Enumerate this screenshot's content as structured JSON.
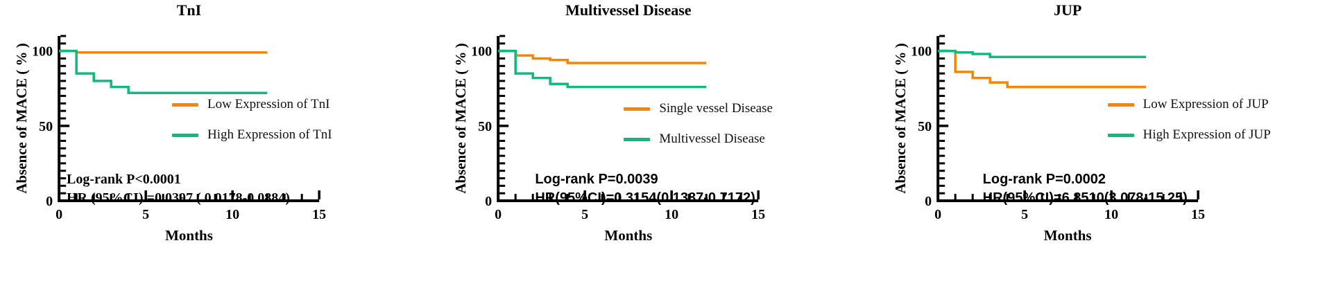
{
  "chart_data": [
    {
      "type": "line",
      "subtype": "kaplan-meier-step",
      "title": "TnI",
      "xlabel": "Months",
      "ylabel": "Absence of MACE ( % )",
      "xlim": [
        0,
        15
      ],
      "ylim": [
        0,
        110
      ],
      "x_major_ticks": [
        0,
        5,
        10,
        15
      ],
      "x_minor_step": 1,
      "y_major_ticks": [
        0,
        50,
        100
      ],
      "y_minor_step": 5,
      "grid": "off",
      "legend_position": "right-middle",
      "series": [
        {
          "name": "Low Expression of TnI",
          "color": "#F78500",
          "points": [
            [
              0,
              100
            ],
            [
              1,
              100
            ],
            [
              1,
              99
            ],
            [
              12,
              99
            ]
          ]
        },
        {
          "name": "High Expression of TnI",
          "color": "#10B981",
          "points": [
            [
              0,
              100
            ],
            [
              1,
              100
            ],
            [
              1,
              85
            ],
            [
              2,
              85
            ],
            [
              2,
              80
            ],
            [
              3,
              80
            ],
            [
              3,
              76
            ],
            [
              4,
              76
            ],
            [
              4,
              72
            ],
            [
              12,
              72
            ]
          ]
        }
      ],
      "annotations": [
        "Log-rank P<0.0001",
        "HR (95%CI) =0.0397 ( 0.0178-0.0884)"
      ]
    },
    {
      "type": "line",
      "subtype": "kaplan-meier-step",
      "title": "Multivessel Disease",
      "xlabel": "Months",
      "ylabel": "Absence of MACE ( % )",
      "xlim": [
        0,
        15
      ],
      "ylim": [
        0,
        110
      ],
      "x_major_ticks": [
        0,
        5,
        10,
        15
      ],
      "x_minor_step": 1,
      "y_major_ticks": [
        0,
        50,
        100
      ],
      "y_minor_step": 5,
      "grid": "off",
      "legend_position": "right-middle",
      "series": [
        {
          "name": "Single vessel Disease",
          "color": "#F78500",
          "points": [
            [
              0,
              100
            ],
            [
              1,
              100
            ],
            [
              1,
              97
            ],
            [
              2,
              97
            ],
            [
              2,
              95
            ],
            [
              3,
              95
            ],
            [
              3,
              94
            ],
            [
              4,
              94
            ],
            [
              4,
              92
            ],
            [
              12,
              92
            ]
          ]
        },
        {
          "name": "Multivessel Disease",
          "color": "#10B981",
          "points": [
            [
              0,
              100
            ],
            [
              1,
              100
            ],
            [
              1,
              85
            ],
            [
              2,
              85
            ],
            [
              2,
              82
            ],
            [
              3,
              82
            ],
            [
              3,
              78
            ],
            [
              4,
              78
            ],
            [
              4,
              76
            ],
            [
              12,
              76
            ]
          ]
        }
      ],
      "annotations": [
        "Log-rank P=0.0039",
        "HR(95%CI)=0.3154(0.1387-0.7172)"
      ]
    },
    {
      "type": "line",
      "subtype": "kaplan-meier-step",
      "title": "JUP",
      "xlabel": "Months",
      "ylabel": "Absence of MACE ( % )",
      "xlim": [
        0,
        15
      ],
      "ylim": [
        0,
        110
      ],
      "x_major_ticks": [
        0,
        5,
        10,
        15
      ],
      "x_minor_step": 1,
      "y_major_ticks": [
        0,
        50,
        100
      ],
      "y_minor_step": 5,
      "grid": "off",
      "legend_position": "right-middle",
      "series": [
        {
          "name": "Low Expression of JUP",
          "color": "#F78500",
          "points": [
            [
              0,
              100
            ],
            [
              1,
              100
            ],
            [
              1,
              86
            ],
            [
              2,
              86
            ],
            [
              2,
              82
            ],
            [
              3,
              82
            ],
            [
              3,
              79
            ],
            [
              4,
              79
            ],
            [
              4,
              76
            ],
            [
              12,
              76
            ]
          ]
        },
        {
          "name": "High Expression of JUP",
          "color": "#10B981",
          "points": [
            [
              0,
              100
            ],
            [
              1,
              100
            ],
            [
              1,
              99
            ],
            [
              2,
              99
            ],
            [
              2,
              98
            ],
            [
              3,
              98
            ],
            [
              3,
              96
            ],
            [
              12,
              96
            ]
          ]
        }
      ],
      "annotations": [
        "Log-rank P=0.0002",
        "HR(95%CI)=6.8510(3.078-15.25)"
      ]
    }
  ],
  "colors": {
    "orange": "#F78500",
    "green": "#10B981",
    "axis": "#000000",
    "background": "#FFFFFF"
  }
}
